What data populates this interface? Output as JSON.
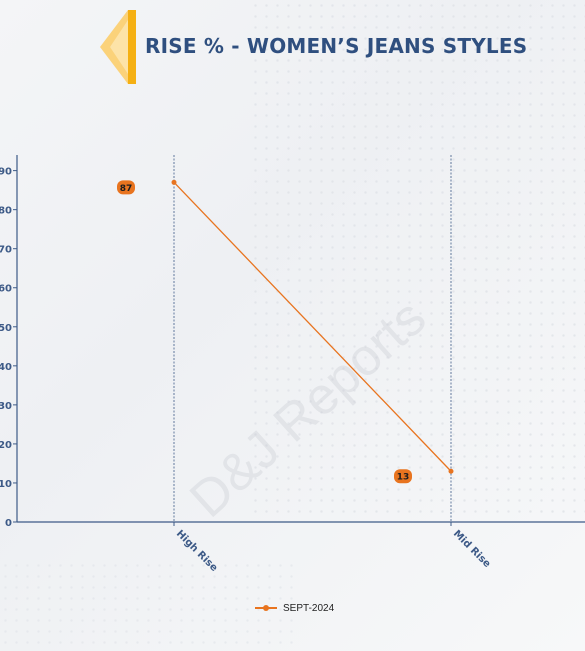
{
  "title": "RISE % - WOMEN’S JEANS STYLES",
  "watermark": "D&J Reports",
  "colors": {
    "title": "#2f4f7f",
    "accent_dark": "#f5b013",
    "accent_light": "#fbd27a",
    "series": "#e8741f",
    "axis": "#3d5a87"
  },
  "chart_data": {
    "type": "line",
    "categories": [
      "High Rise",
      "Mid Rise"
    ],
    "series": [
      {
        "name": "SEPT-2024",
        "values": [
          87,
          13
        ]
      }
    ],
    "data_labels": [
      "87",
      "13"
    ],
    "y_ticks": [
      "0",
      "10",
      "20",
      "30",
      "40",
      "50",
      "60",
      "70",
      "80",
      "90"
    ],
    "ylim": [
      0,
      94
    ],
    "legend_position": "bottom"
  }
}
